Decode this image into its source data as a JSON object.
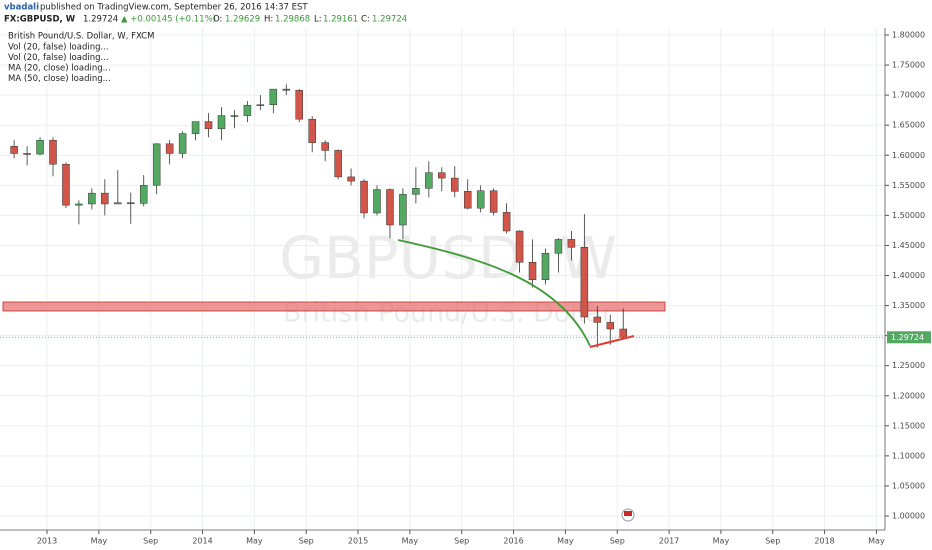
{
  "header": {
    "author": "vbadali",
    "published": "published on TradingView.com, September 26, 2016 14:37 EST",
    "symbol": "FX:GBPUSD, W",
    "last": "1.29724",
    "change": "▲ +0.00145 (+0.11%)",
    "open_label": "O:",
    "open": "1.29629",
    "high_label": "H:",
    "high": "1.29868",
    "low_label": "L:",
    "low": "1.29161",
    "close_label": "C:",
    "close": "1.29724"
  },
  "chart_data": {
    "type": "candlestick",
    "title": "British Pound/U.S. Dollar, W, FXCM",
    "indicators": [
      "Vol (20, false) loading...",
      "Vol (20, false) loading...",
      "MA (20, close) loading...",
      "MA (50, close) loading..."
    ],
    "watermark": "GBPUSD, W",
    "watermark_subtitle": "British Pound/U.S. Dollar",
    "up_color": "#53a862",
    "down_color": "#d2554a",
    "grid": true,
    "x": [
      "2012-10",
      "2012-11",
      "2012-12",
      "2013-01",
      "2013-02",
      "2013-03",
      "2013-04",
      "2013-05",
      "2013-06",
      "2013-07",
      "2013-08",
      "2013-09",
      "2013-10",
      "2013-11",
      "2013-12",
      "2014-01",
      "2014-02",
      "2014-03",
      "2014-04",
      "2014-05",
      "2014-06",
      "2014-07",
      "2014-08",
      "2014-09",
      "2014-10",
      "2014-11",
      "2014-12",
      "2015-01",
      "2015-02",
      "2015-03",
      "2015-04",
      "2015-05",
      "2015-06",
      "2015-07",
      "2015-08",
      "2015-09",
      "2015-10",
      "2015-11",
      "2015-12",
      "2016-01",
      "2016-02",
      "2016-03",
      "2016-04",
      "2016-05",
      "2016-06",
      "2016-07",
      "2016-08",
      "2016-09"
    ],
    "open": [
      1.615,
      1.603,
      1.602,
      1.625,
      1.585,
      1.517,
      1.519,
      1.537,
      1.519,
      1.521,
      1.52,
      1.55,
      1.619,
      1.603,
      1.636,
      1.656,
      1.644,
      1.666,
      1.666,
      1.683,
      1.684,
      1.71,
      1.708,
      1.66,
      1.621,
      1.608,
      1.564,
      1.557,
      1.504,
      1.543,
      1.484,
      1.535,
      1.545,
      1.571,
      1.562,
      1.54,
      1.512,
      1.541,
      1.505,
      1.474,
      1.422,
      1.393,
      1.437,
      1.46,
      1.447,
      1.331,
      1.322,
      1.311
    ],
    "high": [
      1.625,
      1.615,
      1.63,
      1.63,
      1.588,
      1.525,
      1.545,
      1.56,
      1.575,
      1.538,
      1.567,
      1.62,
      1.625,
      1.64,
      1.655,
      1.67,
      1.68,
      1.675,
      1.69,
      1.7,
      1.71,
      1.718,
      1.71,
      1.665,
      1.625,
      1.61,
      1.578,
      1.56,
      1.55,
      1.545,
      1.545,
      1.58,
      1.59,
      1.58,
      1.582,
      1.56,
      1.55,
      1.545,
      1.52,
      1.475,
      1.46,
      1.445,
      1.462,
      1.474,
      1.502,
      1.349,
      1.335,
      1.345
    ],
    "low": [
      1.595,
      1.583,
      1.6,
      1.565,
      1.512,
      1.485,
      1.51,
      1.5,
      1.52,
      1.486,
      1.515,
      1.535,
      1.585,
      1.595,
      1.625,
      1.63,
      1.625,
      1.645,
      1.655,
      1.675,
      1.67,
      1.7,
      1.655,
      1.605,
      1.59,
      1.56,
      1.55,
      1.495,
      1.5,
      1.462,
      1.46,
      1.52,
      1.53,
      1.54,
      1.53,
      1.51,
      1.505,
      1.5,
      1.47,
      1.405,
      1.38,
      1.385,
      1.405,
      1.425,
      1.32,
      1.28,
      1.285,
      1.296
    ],
    "close": [
      1.603,
      1.602,
      1.625,
      1.585,
      1.517,
      1.519,
      1.537,
      1.519,
      1.521,
      1.52,
      1.55,
      1.619,
      1.603,
      1.636,
      1.656,
      1.644,
      1.666,
      1.666,
      1.683,
      1.684,
      1.71,
      1.708,
      1.66,
      1.621,
      1.608,
      1.564,
      1.557,
      1.504,
      1.543,
      1.484,
      1.535,
      1.545,
      1.571,
      1.562,
      1.54,
      1.512,
      1.541,
      1.505,
      1.474,
      1.422,
      1.393,
      1.437,
      1.46,
      1.447,
      1.331,
      1.322,
      1.311,
      1.297
    ],
    "last_price": 1.29724,
    "last_price_color": "#53a862",
    "ylim": [
      1.0,
      1.8
    ],
    "yticks": [
      {
        "value": 1.0,
        "label": "1.00000"
      },
      {
        "value": 1.05,
        "label": "1.05000"
      },
      {
        "value": 1.1,
        "label": "1.10000"
      },
      {
        "value": 1.15,
        "label": "1.15000"
      },
      {
        "value": 1.2,
        "label": "1.20000"
      },
      {
        "value": 1.25,
        "label": "1.25000"
      },
      {
        "value": 1.3,
        "label": "1.30000"
      },
      {
        "value": 1.35,
        "label": "1.35000"
      },
      {
        "value": 1.4,
        "label": "1.40000"
      },
      {
        "value": 1.45,
        "label": "1.45000"
      },
      {
        "value": 1.5,
        "label": "1.50000"
      },
      {
        "value": 1.55,
        "label": "1.55000"
      },
      {
        "value": 1.6,
        "label": "1.60000"
      },
      {
        "value": 1.65,
        "label": "1.65000"
      },
      {
        "value": 1.7,
        "label": "1.70000"
      },
      {
        "value": 1.75,
        "label": "1.75000"
      },
      {
        "value": 1.8,
        "label": "1.80000"
      }
    ],
    "xticks": [
      {
        "value": "2013-01",
        "label": "2013"
      },
      {
        "value": "2013-05",
        "label": "May"
      },
      {
        "value": "2013-09",
        "label": "Sep"
      },
      {
        "value": "2014-01",
        "label": "2014"
      },
      {
        "value": "2014-05",
        "label": "May"
      },
      {
        "value": "2014-09",
        "label": "Sep"
      },
      {
        "value": "2015-01",
        "label": "2015"
      },
      {
        "value": "2015-05",
        "label": "May"
      },
      {
        "value": "2015-09",
        "label": "Sep"
      },
      {
        "value": "2016-01",
        "label": "2016"
      },
      {
        "value": "2016-05",
        "label": "May"
      },
      {
        "value": "2016-09",
        "label": "Sep"
      },
      {
        "value": "2017-01",
        "label": "2017"
      },
      {
        "value": "2017-05",
        "label": "May"
      },
      {
        "value": "2017-09",
        "label": "Sep"
      },
      {
        "value": "2018-01",
        "label": "2018"
      },
      {
        "value": "2018-05",
        "label": "May"
      }
    ]
  }
}
